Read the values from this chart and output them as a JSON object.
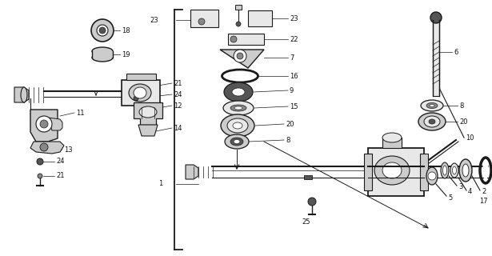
{
  "bg_color": "#ffffff",
  "lc": "#1a1a1a",
  "gray_dark": "#555555",
  "gray_mid": "#888888",
  "gray_light": "#b0b0b0",
  "gray_fill": "#cccccc",
  "gray_very_light": "#e8e8e8",
  "black": "#111111"
}
